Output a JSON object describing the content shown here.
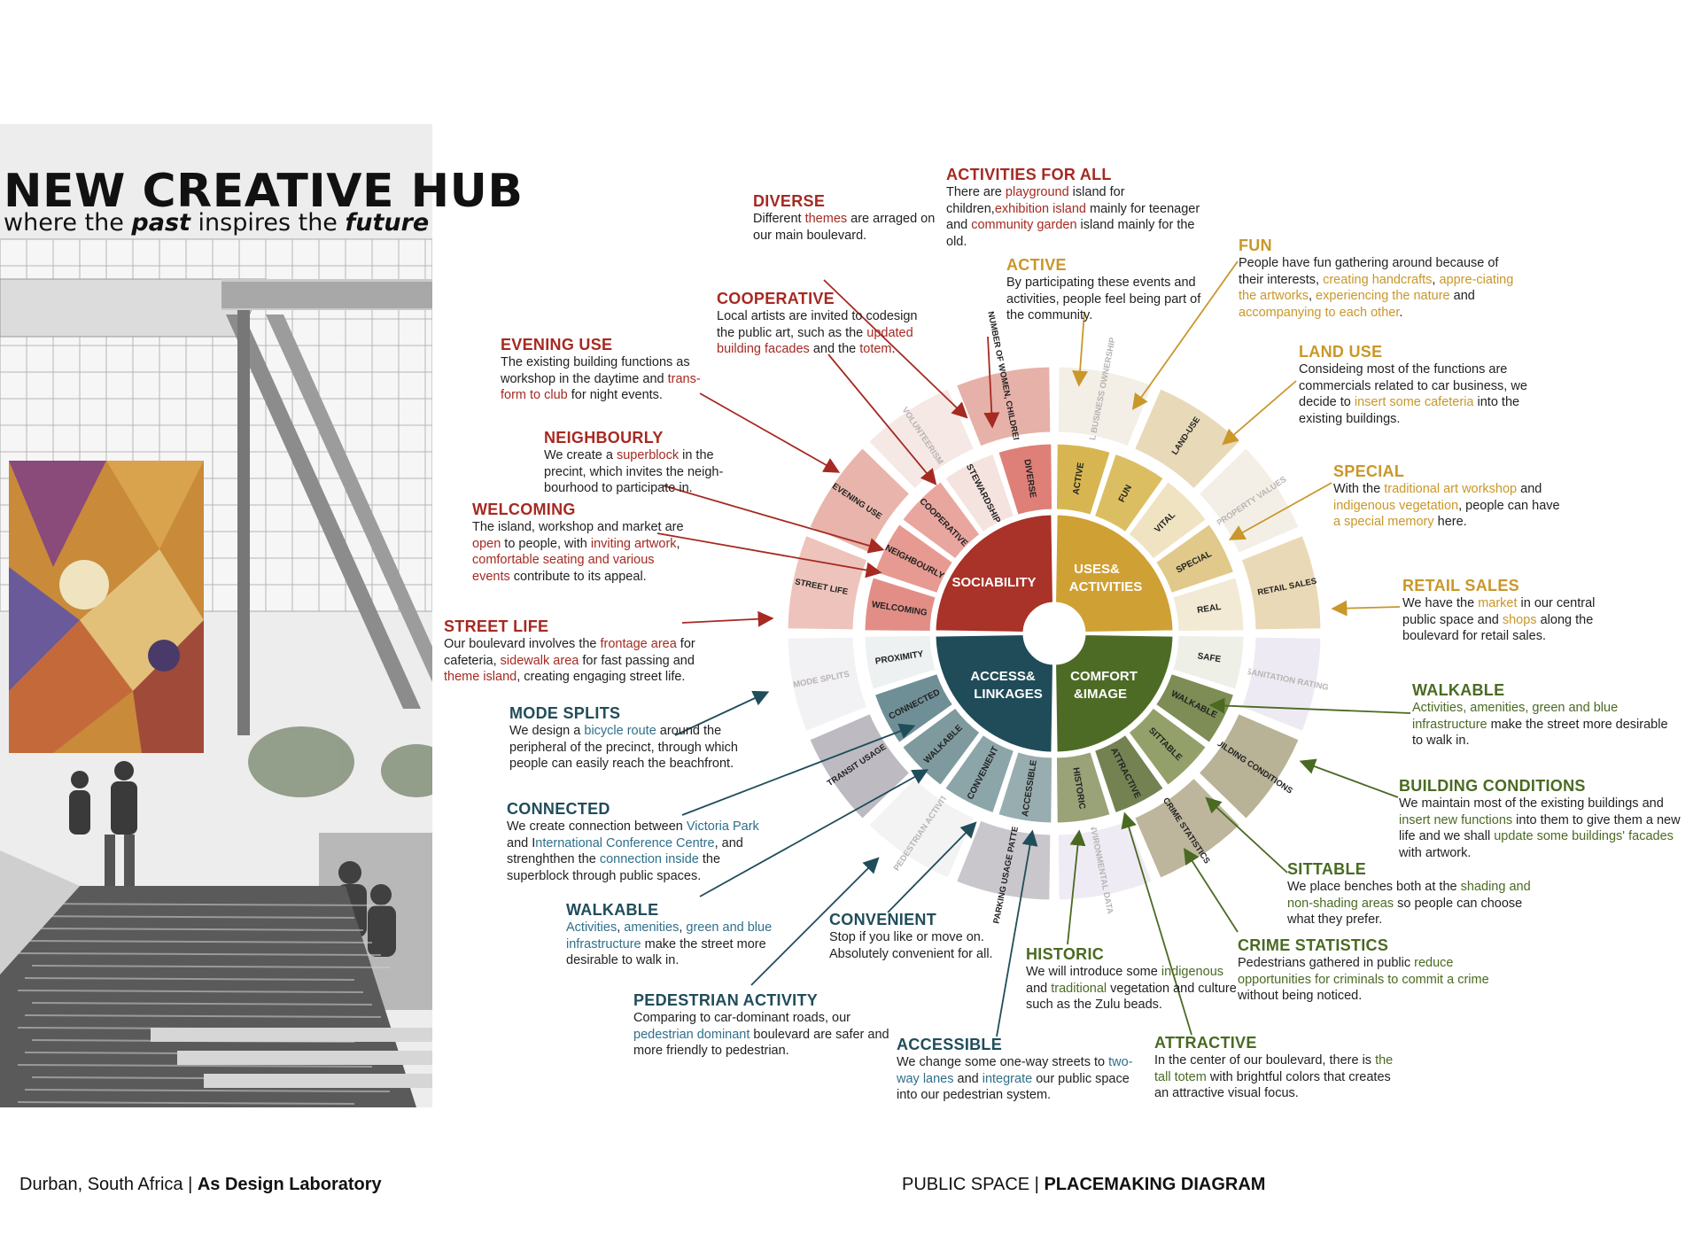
{
  "header": {
    "title": "NEW CREATIVE HUB",
    "subtitle_pre": "where the ",
    "subtitle_em1": "past",
    "subtitle_mid": " inspires the ",
    "subtitle_em2": "future"
  },
  "footer": {
    "left_plain": "Durban, South Africa | ",
    "left_bold": "As Design Laboratory",
    "right_plain": "PUBLIC SPACE | ",
    "right_bold": "PLACEMAKING DIAGRAM"
  },
  "colors": {
    "sociability": "#a93229",
    "uses": "#cfa033",
    "access": "#1f4c58",
    "comfort": "#4e6b26"
  },
  "core": {
    "sociability": "SOCIABILITY",
    "uses_1": "USES&",
    "uses_2": "ACTIVITIES",
    "access_1": "ACCESS&",
    "access_2": "LINKAGES",
    "comfort_1": "COMFORT",
    "comfort_2": "&IMAGE"
  },
  "inner": {
    "sociability": [
      "WELCOMING",
      "NEIGHBOURLY",
      "COOPERATIVE",
      "STEWARDSHIP",
      "DIVERSE"
    ],
    "uses": [
      "ACTIVE",
      "FUN",
      "VITAL",
      "SPECIAL",
      "REAL"
    ],
    "access": [
      "PROXIMITY",
      "CONNECTED",
      "WALKABLE",
      "CONVENIENT",
      "ACCESSIBLE"
    ],
    "comfort": [
      "SAFE",
      "WALKABLE",
      "SITTABLE",
      "ATTRACTIVE",
      "HISTORIC"
    ]
  },
  "outer": {
    "sociability": [
      "STREET LIFE",
      "EVENING USE",
      "VOLUNTEERISM",
      "NUMBER OF WOMEN, CHILDREN &ELDERLY"
    ],
    "uses": [
      "LOCAL BUSINESS OWNERSHIP",
      "LAND-USE",
      "PROPERTY VALUES",
      "RETAIL SALES"
    ],
    "access": [
      "MODE SPLITS",
      "TRANSIT USAGE",
      "PEDESTRIAN ACTIVITY",
      "PARKING USAGE PATTERNS"
    ],
    "comfort": [
      "SANITATION RATING",
      "BUILDING CONDITIONS",
      "CRIME STATISTICS",
      "ENVIRONMENTAL DATA"
    ]
  },
  "notes": {
    "activities_for_all": {
      "h": "ACTIVITIES FOR ALL",
      "t": [
        [
          "There are ",
          ""
        ],
        [
          "playground",
          "c"
        ],
        [
          " island for children,",
          ""
        ],
        [
          "exhibition island",
          "c"
        ],
        [
          " mainly for teenager and ",
          ""
        ],
        [
          "community garden",
          "c"
        ],
        [
          " island mainly for the old.",
          ""
        ]
      ]
    },
    "diverse": {
      "h": "DIVERSE",
      "t": [
        [
          "Different ",
          ""
        ],
        [
          "themes",
          "c"
        ],
        [
          " are arraged on our main boulevard.",
          ""
        ]
      ]
    },
    "active": {
      "h": "ACTIVE",
      "t": [
        [
          "By participating these events and activities, people feel being part of the community.",
          ""
        ]
      ]
    },
    "fun": {
      "h": "FUN",
      "t": [
        [
          "People have fun gathering around because of their interests, ",
          ""
        ],
        [
          "creating handcrafts",
          "c"
        ],
        [
          ", ",
          ""
        ],
        [
          "appre-ciating the artworks",
          "c"
        ],
        [
          ", ",
          ""
        ],
        [
          "experiencing the nature",
          "c"
        ],
        [
          " and ",
          ""
        ],
        [
          "accompanying to each other",
          "c"
        ],
        [
          ".",
          ""
        ]
      ]
    },
    "cooperative": {
      "h": "COOPERATIVE",
      "t": [
        [
          "Local artists are invited to codesign the public art, such as the ",
          ""
        ],
        [
          "updated building facades",
          "c"
        ],
        [
          " and the ",
          ""
        ],
        [
          "totem",
          "c"
        ],
        [
          ".",
          ""
        ]
      ]
    },
    "evening_use": {
      "h": "EVENING USE",
      "t": [
        [
          "The existing building functions as workshop in the daytime and ",
          ""
        ],
        [
          "trans-form to club",
          "c"
        ],
        [
          " for night events.",
          ""
        ]
      ]
    },
    "land_use": {
      "h": "LAND USE",
      "t": [
        [
          "Consideing most of the functions are commercials related to car business, we decide to ",
          ""
        ],
        [
          "insert some cafeteria",
          "c"
        ],
        [
          " into the existing buildings.",
          ""
        ]
      ]
    },
    "neighbourly": {
      "h": "NEIGHBOURLY",
      "t": [
        [
          "We create a ",
          ""
        ],
        [
          "superblock",
          "c"
        ],
        [
          " in the precint, which invites the neigh-bourhood to participate in.",
          ""
        ]
      ]
    },
    "special": {
      "h": "SPECIAL",
      "t": [
        [
          "With the ",
          ""
        ],
        [
          "traditional art workshop",
          "c"
        ],
        [
          " and ",
          ""
        ],
        [
          "indigenous vegetation",
          "c"
        ],
        [
          ", people can have ",
          ""
        ],
        [
          "a special memory",
          "c"
        ],
        [
          " here.",
          ""
        ]
      ]
    },
    "welcoming": {
      "h": "WELCOMING",
      "t": [
        [
          "The island, workshop and market are ",
          ""
        ],
        [
          "open",
          "c"
        ],
        [
          " to people, with ",
          ""
        ],
        [
          "inviting artwork",
          "c"
        ],
        [
          ", ",
          ""
        ],
        [
          "comfortable seating and various events",
          "c"
        ],
        [
          " contribute to its appeal.",
          ""
        ]
      ]
    },
    "retail_sales": {
      "h": "RETAIL SALES",
      "t": [
        [
          "We have the ",
          ""
        ],
        [
          "market",
          "c"
        ],
        [
          " in our central public space and ",
          ""
        ],
        [
          "shops",
          "c"
        ],
        [
          " along the boulevard for retail sales.",
          ""
        ]
      ]
    },
    "street_life": {
      "h": "STREET LIFE",
      "t": [
        [
          "Our boulevard involves the ",
          ""
        ],
        [
          "frontage area",
          "c"
        ],
        [
          " for cafeteria, ",
          ""
        ],
        [
          "sidewalk area",
          "c"
        ],
        [
          " for fast passing and ",
          ""
        ],
        [
          "theme island",
          "c"
        ],
        [
          ", creating engaging street life.",
          ""
        ]
      ]
    },
    "walkable_r": {
      "h": "WALKABLE",
      "t": [
        [
          "Activities, amenities, green and blue infrastructure",
          "c"
        ],
        [
          " make the street more desirable to walk in.",
          ""
        ]
      ]
    },
    "mode_splits": {
      "h": "MODE SPLITS",
      "t": [
        [
          "We design a ",
          ""
        ],
        [
          "bicycle route",
          "c"
        ],
        [
          " around the peripheral of the precinct, through which people can easily reach the beachfront.",
          ""
        ]
      ]
    },
    "building_conditions": {
      "h": "BUILDING CONDITIONS",
      "t": [
        [
          "We maintain most of the existing buildings and ",
          ""
        ],
        [
          "insert new functions",
          "c"
        ],
        [
          " into them to give them a new life and we shall ",
          ""
        ],
        [
          "update some buildings' facades",
          "c"
        ],
        [
          " with artwork.",
          ""
        ]
      ]
    },
    "connected": {
      "h": "CONNECTED",
      "t": [
        [
          "We create connection between ",
          ""
        ],
        [
          "Victoria Park",
          "c"
        ],
        [
          " and I",
          ""
        ],
        [
          "nternational Conference Centre",
          "c"
        ],
        [
          ", and strenghthen the ",
          ""
        ],
        [
          "connection inside",
          "c"
        ],
        [
          " the superblock through public spaces.",
          ""
        ]
      ]
    },
    "sittable": {
      "h": "SITTABLE",
      "t": [
        [
          "We place benches both at the ",
          ""
        ],
        [
          "shading and non-shading areas",
          "c"
        ],
        [
          " so people can choose what they prefer.",
          ""
        ]
      ]
    },
    "walkable_l": {
      "h": "WALKABLE",
      "t": [
        [
          "Activities",
          "c"
        ],
        [
          ", ",
          ""
        ],
        [
          "amenities",
          "c"
        ],
        [
          ", ",
          ""
        ],
        [
          "green and blue infrastructure",
          "c"
        ],
        [
          " make the street more desirable to walk in.",
          ""
        ]
      ]
    },
    "convenient": {
      "h": "CONVENIENT",
      "t": [
        [
          "Stop if you like or move on. Absolutely convenient for all.",
          ""
        ]
      ]
    },
    "crime_statistics": {
      "h": "CRIME STATISTICS",
      "t": [
        [
          "Pedestrians gathered in public ",
          ""
        ],
        [
          "reduce opportunities for criminals to commit a crime",
          "c"
        ],
        [
          " without being noticed.",
          ""
        ]
      ]
    },
    "historic": {
      "h": "HISTORIC",
      "t": [
        [
          "We will introduce some ",
          ""
        ],
        [
          "indigenous",
          "c"
        ],
        [
          " and ",
          ""
        ],
        [
          "traditional",
          "c"
        ],
        [
          " vegetation and culture such as the Zulu beads.",
          ""
        ]
      ]
    },
    "pedestrian_activity": {
      "h": "PEDESTRIAN ACTIVITY",
      "t": [
        [
          "Comparing to car-dominant roads, our ",
          ""
        ],
        [
          "pedestrian dominant",
          "c"
        ],
        [
          " boulevard are safer and more friendly to pedestrian.",
          ""
        ]
      ]
    },
    "attractive": {
      "h": "ATTRACTIVE",
      "t": [
        [
          "In the center of our boulevard, there is ",
          ""
        ],
        [
          "the tall totem",
          "c"
        ],
        [
          " with brightful colors that creates an attractive visual focus.",
          ""
        ]
      ]
    },
    "accessible": {
      "h": "ACCESSIBLE",
      "t": [
        [
          "We change some one-way streets to ",
          ""
        ],
        [
          "two-way lanes",
          "c"
        ],
        [
          " and ",
          ""
        ],
        [
          "integrate",
          "c"
        ],
        [
          " our public space into our pedestrian system.",
          ""
        ]
      ]
    }
  }
}
